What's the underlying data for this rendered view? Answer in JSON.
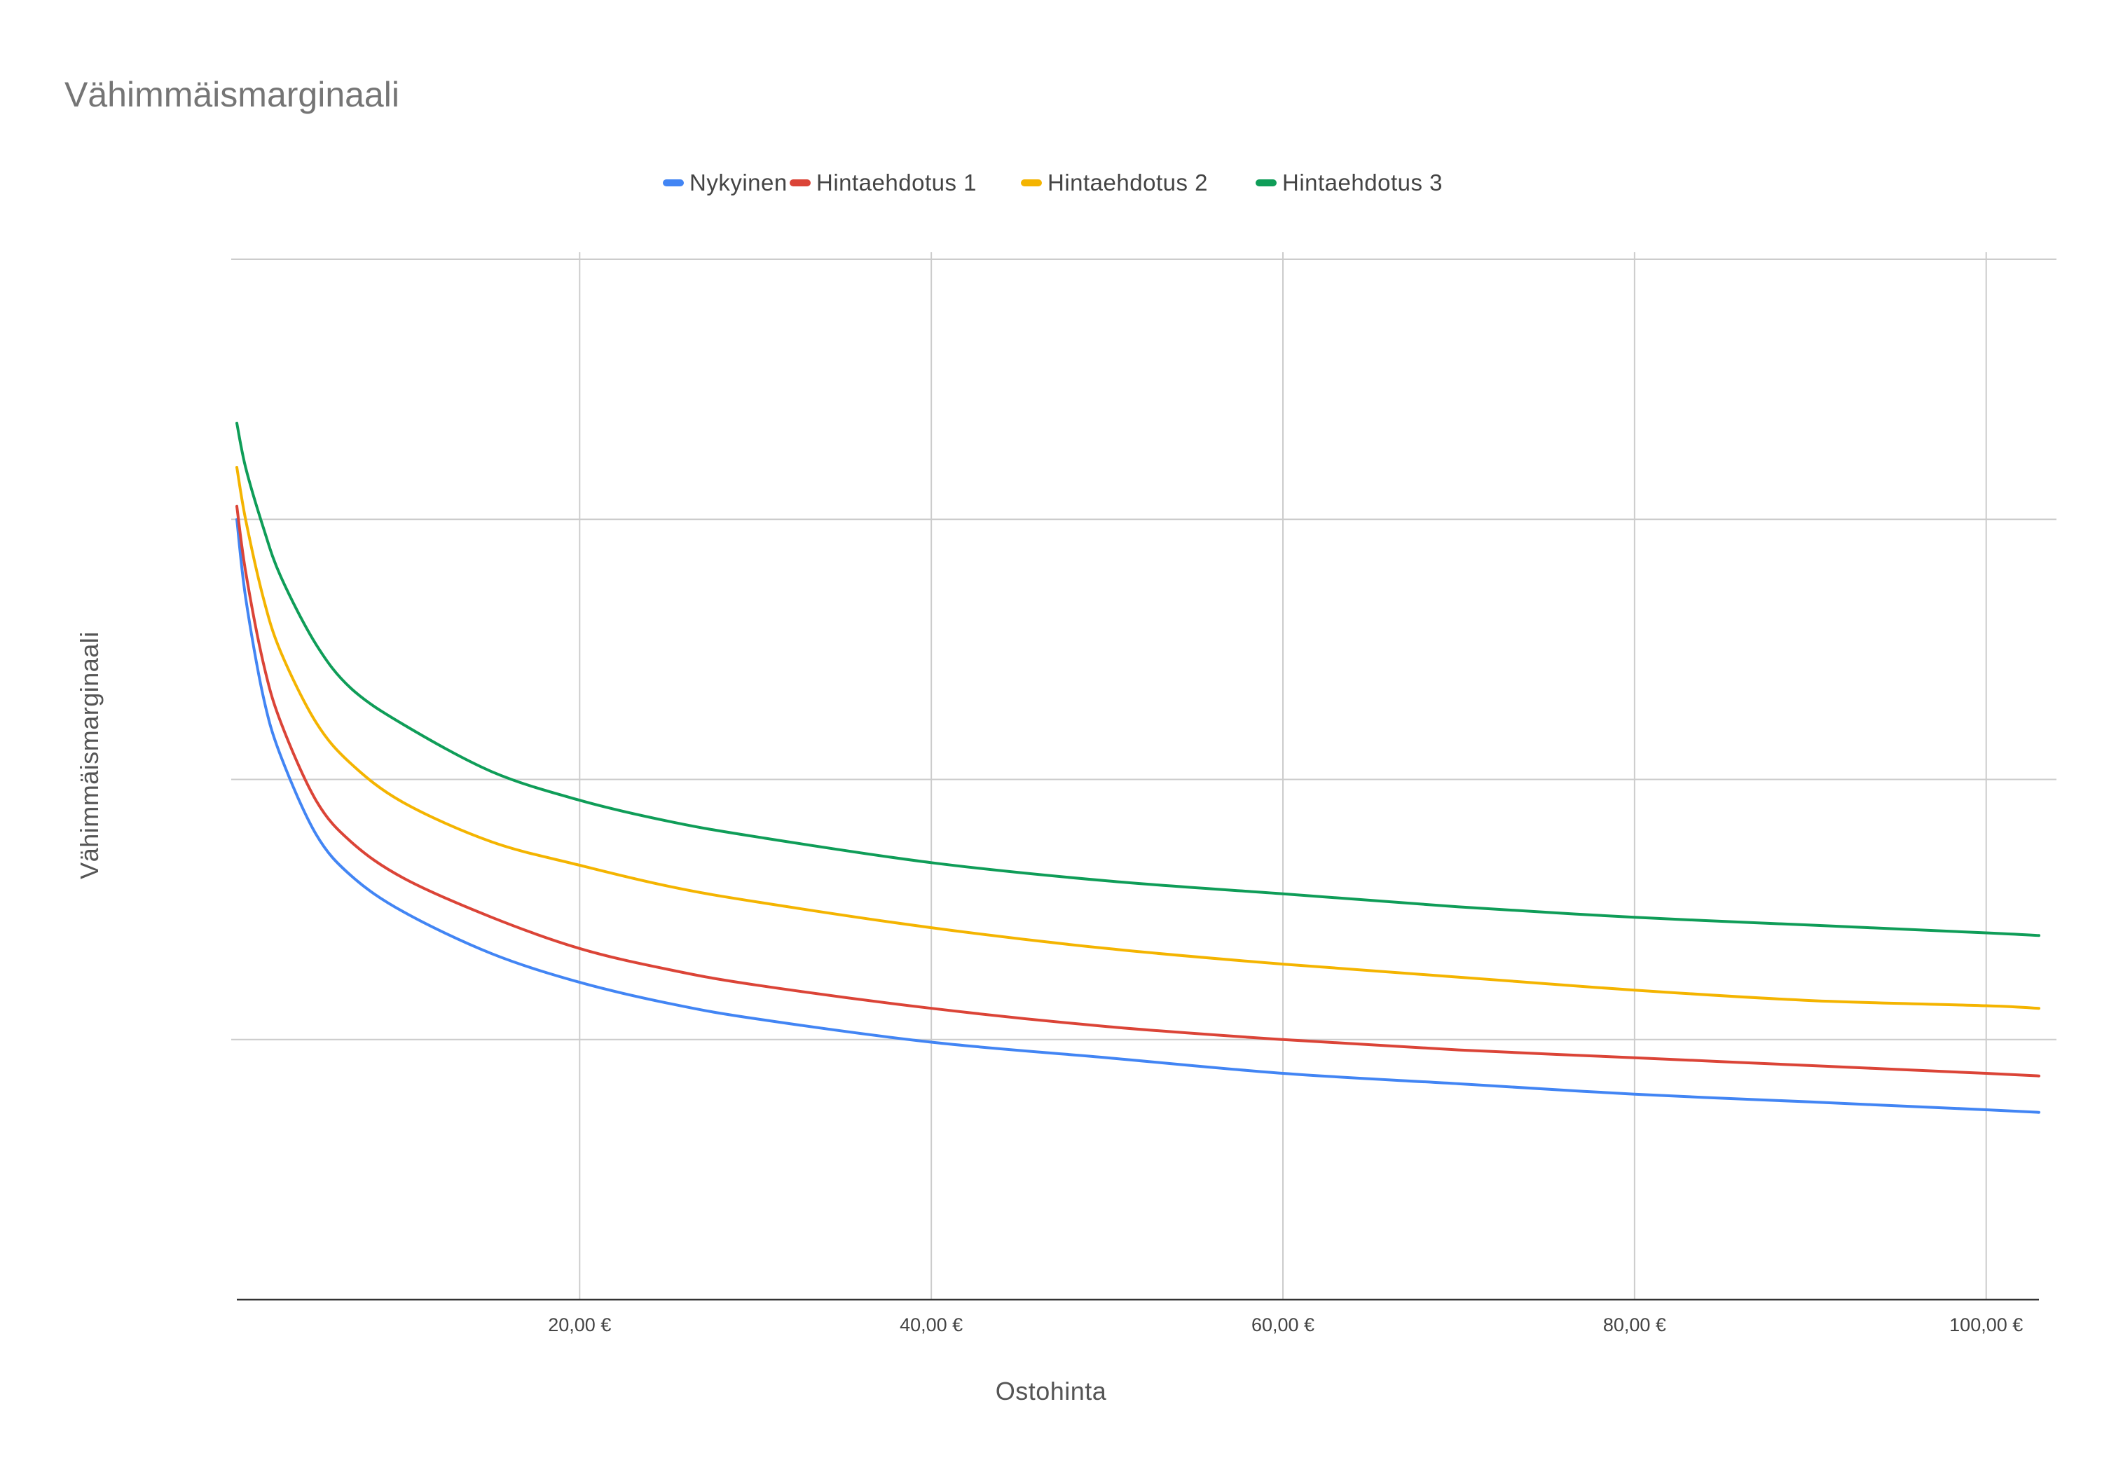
{
  "chart_data": {
    "type": "line",
    "title": "Vähimmäismarginaali",
    "xlabel": "Ostohinta",
    "ylabel": "Vähimmäismarginaali",
    "x_ticks": [
      "20,00 €",
      "40,00 €",
      "60,00 €",
      "80,00 €",
      "100,00 €"
    ],
    "x_tick_values": [
      20,
      40,
      60,
      80,
      100
    ],
    "xlim": [
      0.5,
      103
    ],
    "ylim": [
      0,
      4
    ],
    "y_gridlines": [
      1,
      2,
      3,
      4
    ],
    "grid": true,
    "legend_position": "top",
    "x": [
      0.5,
      1,
      2,
      3,
      5,
      7,
      10,
      15,
      20,
      25,
      30,
      40,
      50,
      60,
      70,
      80,
      90,
      100,
      103
    ],
    "series": [
      {
        "name": "Nykyinen",
        "color": "#4285F4",
        "values": [
          3.0,
          2.7,
          2.32,
          2.09,
          1.79,
          1.63,
          1.49,
          1.33,
          1.22,
          1.14,
          1.08,
          0.99,
          0.93,
          0.87,
          0.83,
          0.79,
          0.76,
          0.73,
          0.72
        ]
      },
      {
        "name": "Hintaehdotus 1",
        "color": "#DB4437",
        "values": [
          3.05,
          2.8,
          2.45,
          2.22,
          1.92,
          1.76,
          1.62,
          1.47,
          1.35,
          1.27,
          1.21,
          1.12,
          1.05,
          1.0,
          0.96,
          0.93,
          0.9,
          0.87,
          0.86
        ]
      },
      {
        "name": "Hintaehdotus 2",
        "color": "#F4B400",
        "values": [
          3.2,
          3.0,
          2.7,
          2.49,
          2.22,
          2.06,
          1.91,
          1.76,
          1.67,
          1.59,
          1.53,
          1.43,
          1.35,
          1.29,
          1.24,
          1.19,
          1.15,
          1.13,
          1.12
        ]
      },
      {
        "name": "Hintaehdotus 3",
        "color": "#0F9D58",
        "values": [
          3.37,
          3.2,
          2.97,
          2.78,
          2.52,
          2.35,
          2.21,
          2.03,
          1.92,
          1.84,
          1.78,
          1.68,
          1.61,
          1.56,
          1.51,
          1.47,
          1.44,
          1.41,
          1.4
        ]
      }
    ]
  }
}
